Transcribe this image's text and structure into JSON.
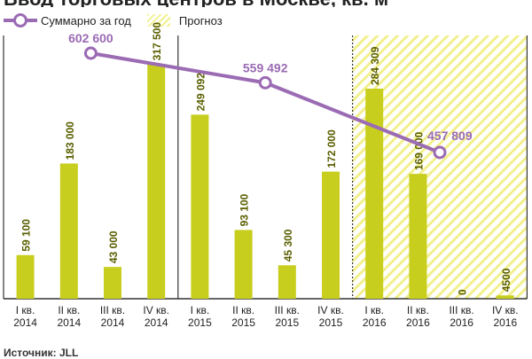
{
  "title": "Ввод торговых центров в Москве, кв. м",
  "legend": {
    "total_label": "Суммарно за год",
    "forecast_label": "Прогноз"
  },
  "source_label": "Источник: JLL",
  "colors": {
    "bar": "#c8ce1e",
    "line": "#9b6bb4",
    "forecast_hatch": "#f2f08c",
    "divider": "#333333"
  },
  "chart_data": {
    "type": "bar",
    "title": "Ввод торговых центров в Москве, кв. м",
    "categories": [
      [
        "I кв.",
        "2014"
      ],
      [
        "II кв.",
        "2014"
      ],
      [
        "III кв.",
        "2014"
      ],
      [
        "IV кв.",
        "2014"
      ],
      [
        "I кв.",
        "2015"
      ],
      [
        "II кв.",
        "2015"
      ],
      [
        "III кв.",
        "2015"
      ],
      [
        "IV кв.",
        "2015"
      ],
      [
        "I кв.",
        "2016"
      ],
      [
        "II кв.",
        "2016"
      ],
      [
        "III кв.",
        "2016"
      ],
      [
        "IV кв.",
        "2016"
      ]
    ],
    "values": [
      59100,
      183000,
      43000,
      317500,
      249092,
      93100,
      45300,
      172000,
      284309,
      169000,
      0,
      4500
    ],
    "value_labels": [
      "59 100",
      "183 000",
      "43 000",
      "317 500",
      "249 092",
      "93 100",
      "45 300",
      "172 000",
      "284 309",
      "169 000",
      "0",
      "4500"
    ],
    "forecast_from_index": 8,
    "annual_totals": {
      "x_index": [
        1.5,
        5.5,
        9.5
      ],
      "values": [
        602600,
        559492,
        457809
      ],
      "labels": [
        "602 600",
        "559 492",
        "457 809"
      ]
    },
    "ylim": [
      0,
      330000
    ],
    "grid": false,
    "legend_position": "top-left"
  }
}
